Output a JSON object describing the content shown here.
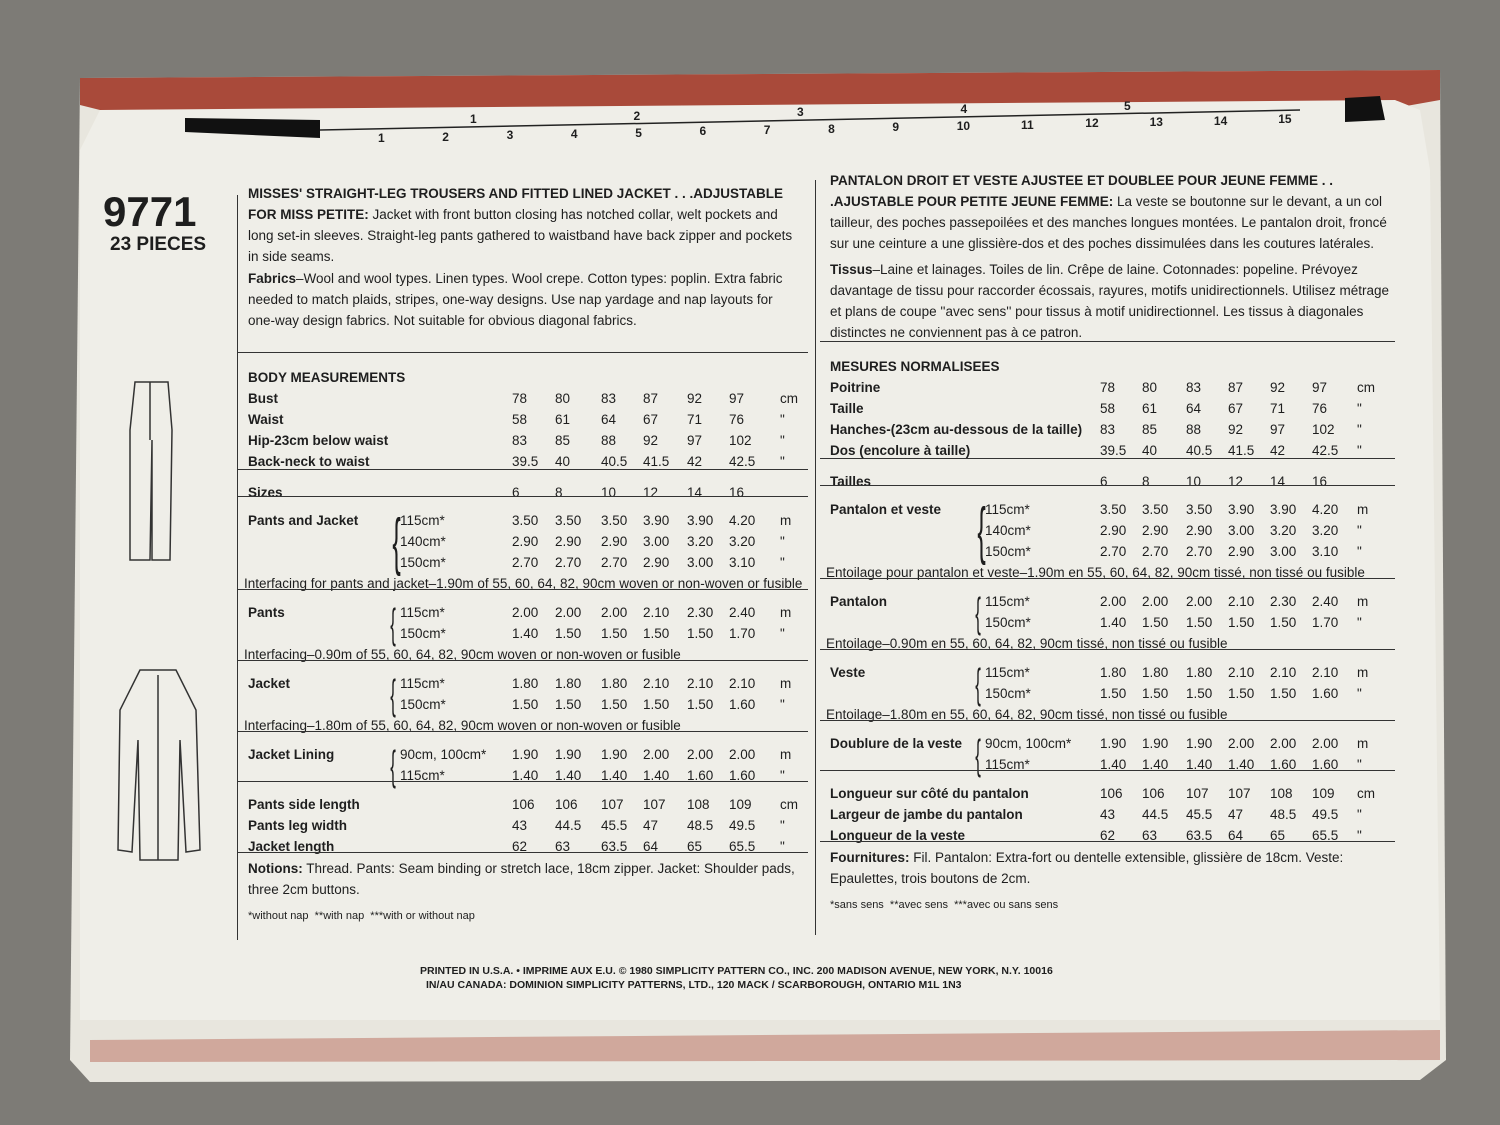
{
  "pattern_number": "9771",
  "pieces": "23 PIECES",
  "ruler": {
    "inches": [
      "1",
      "2",
      "3",
      "4",
      "5"
    ],
    "cm": [
      "1",
      "2",
      "3",
      "4",
      "5",
      "6",
      "7",
      "8",
      "9",
      "10",
      "11",
      "12",
      "13",
      "14",
      "15"
    ]
  },
  "english": {
    "heading": "MISSES' STRAIGHT-LEG TROUSERS AND FITTED LINED JACKET . . .ADJUSTABLE FOR MISS PETITE:",
    "description": "Jacket with front button closing has notched collar, welt pockets and long set-in sleeves. Straight-leg pants gathered to waistband have back zipper and pockets in side seams.",
    "fabrics_label": "Fabrics",
    "fabrics": "–Wool and wool types. Linen types. Wool crepe. Cotton types: poplin. Extra fabric needed to match plaids, stripes, one-way designs. Use nap yardage and nap layouts for one-way design fabrics. Not suitable for obvious diagonal fabrics.",
    "body_title": "BODY MEASUREMENTS",
    "body": [
      {
        "label": "Bust",
        "values": [
          "78",
          "80",
          "83",
          "87",
          "92",
          "97"
        ],
        "unit": "cm"
      },
      {
        "label": "Waist",
        "values": [
          "58",
          "61",
          "64",
          "67",
          "71",
          "76"
        ],
        "unit": "\""
      },
      {
        "label": "Hip-23cm below waist",
        "values": [
          "83",
          "85",
          "88",
          "92",
          "97",
          "102"
        ],
        "unit": "\""
      },
      {
        "label": "Back-neck to waist",
        "values": [
          "39.5",
          "40",
          "40.5",
          "41.5",
          "42",
          "42.5"
        ],
        "unit": "\""
      }
    ],
    "sizes": {
      "label": "Sizes",
      "values": [
        "6",
        "8",
        "10",
        "12",
        "14",
        "16"
      ]
    },
    "yardage": [
      {
        "label": "Pants and Jacket",
        "rows": [
          {
            "width": "115cm*",
            "values": [
              "3.50",
              "3.50",
              "3.50",
              "3.90",
              "3.90",
              "4.20"
            ],
            "unit": "m"
          },
          {
            "width": "140cm*",
            "values": [
              "2.90",
              "2.90",
              "2.90",
              "3.00",
              "3.20",
              "3.20"
            ],
            "unit": "\""
          },
          {
            "width": "150cm*",
            "values": [
              "2.70",
              "2.70",
              "2.70",
              "2.90",
              "3.00",
              "3.10"
            ],
            "unit": "\""
          }
        ],
        "note": "Interfacing for pants and jacket–1.90m of 55, 60, 64, 82, 90cm woven or non-woven or fusible"
      },
      {
        "label": "Pants",
        "rows": [
          {
            "width": "115cm*",
            "values": [
              "2.00",
              "2.00",
              "2.00",
              "2.10",
              "2.30",
              "2.40"
            ],
            "unit": "m"
          },
          {
            "width": "150cm*",
            "values": [
              "1.40",
              "1.50",
              "1.50",
              "1.50",
              "1.50",
              "1.70"
            ],
            "unit": "\""
          }
        ],
        "note": "Interfacing–0.90m of 55, 60, 64, 82, 90cm woven or non-woven or fusible"
      },
      {
        "label": "Jacket",
        "rows": [
          {
            "width": "115cm*",
            "values": [
              "1.80",
              "1.80",
              "1.80",
              "2.10",
              "2.10",
              "2.10"
            ],
            "unit": "m"
          },
          {
            "width": "150cm*",
            "values": [
              "1.50",
              "1.50",
              "1.50",
              "1.50",
              "1.50",
              "1.60"
            ],
            "unit": "\""
          }
        ],
        "note": "Interfacing–1.80m of 55, 60, 64, 82, 90cm woven or non-woven or fusible"
      },
      {
        "label": "Jacket Lining",
        "rows": [
          {
            "width": "90cm, 100cm*",
            "values": [
              "1.90",
              "1.90",
              "1.90",
              "2.00",
              "2.00",
              "2.00"
            ],
            "unit": "m"
          },
          {
            "width": "115cm*",
            "values": [
              "1.40",
              "1.40",
              "1.40",
              "1.40",
              "1.60",
              "1.60"
            ],
            "unit": "\""
          }
        ]
      }
    ],
    "finished": [
      {
        "label": "Pants side length",
        "values": [
          "106",
          "106",
          "107",
          "107",
          "108",
          "109"
        ],
        "unit": "cm"
      },
      {
        "label": "Pants leg width",
        "values": [
          "43",
          "44.5",
          "45.5",
          "47",
          "48.5",
          "49.5"
        ],
        "unit": "\""
      },
      {
        "label": "Jacket length",
        "values": [
          "62",
          "63",
          "63.5",
          "64",
          "65",
          "65.5"
        ],
        "unit": "\""
      }
    ],
    "notions_label": "Notions:",
    "notions": "Thread. Pants: Seam binding or stretch lace, 18cm zipper. Jacket: Shoulder pads, three 2cm buttons.",
    "footnote": "*without nap  **with nap  ***with or without nap"
  },
  "french": {
    "heading": "PANTALON DROIT ET VESTE AJUSTEE ET DOUBLEE POUR JEUNE FEMME . . .AJUSTABLE POUR PETITE JEUNE FEMME:",
    "description": "La veste se boutonne sur le devant, a un col tailleur, des poches passepoilées et des manches longues montées. Le pantalon droit, froncé sur une ceinture a une glissière-dos et des poches dissimulées dans les coutures latérales.",
    "fabrics_label": "Tissus",
    "fabrics": "–Laine et lainages. Toiles de lin. Crêpe de laine. Cotonnades: popeline. Prévoyez davantage de tissu pour raccorder écossais, rayures, motifs unidirectionnels. Utilisez métrage et plans de coupe ''avec sens'' pour tissus à motif unidirectionnel. Les tissus à diagonales distinctes ne conviennent pas à ce patron.",
    "body_title": "MESURES NORMALISEES",
    "body": [
      {
        "label": "Poitrine",
        "values": [
          "78",
          "80",
          "83",
          "87",
          "92",
          "97"
        ],
        "unit": "cm"
      },
      {
        "label": "Taille",
        "values": [
          "58",
          "61",
          "64",
          "67",
          "71",
          "76"
        ],
        "unit": "\""
      },
      {
        "label": "Hanches-(23cm au-dessous de la taille)",
        "values": [
          "83",
          "85",
          "88",
          "92",
          "97",
          "102"
        ],
        "unit": "\""
      },
      {
        "label": "Dos (encolure à taille)",
        "values": [
          "39.5",
          "40",
          "40.5",
          "41.5",
          "42",
          "42.5"
        ],
        "unit": "\""
      }
    ],
    "sizes": {
      "label": "Tailles",
      "values": [
        "6",
        "8",
        "10",
        "12",
        "14",
        "16"
      ]
    },
    "yardage": [
      {
        "label": "Pantalon et veste",
        "rows": [
          {
            "width": "115cm*",
            "values": [
              "3.50",
              "3.50",
              "3.50",
              "3.90",
              "3.90",
              "4.20"
            ],
            "unit": "m"
          },
          {
            "width": "140cm*",
            "values": [
              "2.90",
              "2.90",
              "2.90",
              "3.00",
              "3.20",
              "3.20"
            ],
            "unit": "\""
          },
          {
            "width": "150cm*",
            "values": [
              "2.70",
              "2.70",
              "2.70",
              "2.90",
              "3.00",
              "3.10"
            ],
            "unit": "\""
          }
        ],
        "note": "Entoilage pour pantalon et veste–1.90m en 55, 60, 64, 82, 90cm tissé, non tissé ou fusible"
      },
      {
        "label": "Pantalon",
        "rows": [
          {
            "width": "115cm*",
            "values": [
              "2.00",
              "2.00",
              "2.00",
              "2.10",
              "2.30",
              "2.40"
            ],
            "unit": "m"
          },
          {
            "width": "150cm*",
            "values": [
              "1.40",
              "1.50",
              "1.50",
              "1.50",
              "1.50",
              "1.70"
            ],
            "unit": "\""
          }
        ],
        "note": "Entoilage–0.90m en 55, 60, 64, 82, 90cm tissé, non tissé ou fusible"
      },
      {
        "label": "Veste",
        "rows": [
          {
            "width": "115cm*",
            "values": [
              "1.80",
              "1.80",
              "1.80",
              "2.10",
              "2.10",
              "2.10"
            ],
            "unit": "m"
          },
          {
            "width": "150cm*",
            "values": [
              "1.50",
              "1.50",
              "1.50",
              "1.50",
              "1.50",
              "1.60"
            ],
            "unit": "\""
          }
        ],
        "note": "Entoilage–1.80m en 55, 60, 64, 82, 90cm tissé, non tissé ou fusible"
      },
      {
        "label": "Doublure de la veste",
        "rows": [
          {
            "width": "90cm, 100cm*",
            "values": [
              "1.90",
              "1.90",
              "1.90",
              "2.00",
              "2.00",
              "2.00"
            ],
            "unit": "m"
          },
          {
            "width": "115cm*",
            "values": [
              "1.40",
              "1.40",
              "1.40",
              "1.40",
              "1.60",
              "1.60"
            ],
            "unit": "\""
          }
        ]
      }
    ],
    "finished": [
      {
        "label": "Longueur sur côté du pantalon",
        "values": [
          "106",
          "106",
          "107",
          "107",
          "108",
          "109"
        ],
        "unit": "cm"
      },
      {
        "label": "Largeur de jambe du pantalon",
        "values": [
          "43",
          "44.5",
          "45.5",
          "47",
          "48.5",
          "49.5"
        ],
        "unit": "\""
      },
      {
        "label": "Longueur de la veste",
        "values": [
          "62",
          "63",
          "63.5",
          "64",
          "65",
          "65.5"
        ],
        "unit": "\""
      }
    ],
    "notions_label": "Fournitures:",
    "notions": "Fil. Pantalon: Extra-fort ou dentelle extensible, glissière de 18cm. Veste: Epaulettes, trois boutons de 2cm.",
    "footnote": "*sans sens  **avec sens  ***avec ou sans sens"
  },
  "footer": [
    "PRINTED IN U.S.A. • IMPRIME AUX E.U. © 1980 SIMPLICITY PATTERN CO., INC. 200 MADISON AVENUE, NEW YORK, N.Y. 10016",
    "IN/AU CANADA: DOMINION SIMPLICITY PATTERNS, LTD., 120 MACK / SCARBOROUGH, ONTARIO M1L 1N3"
  ]
}
